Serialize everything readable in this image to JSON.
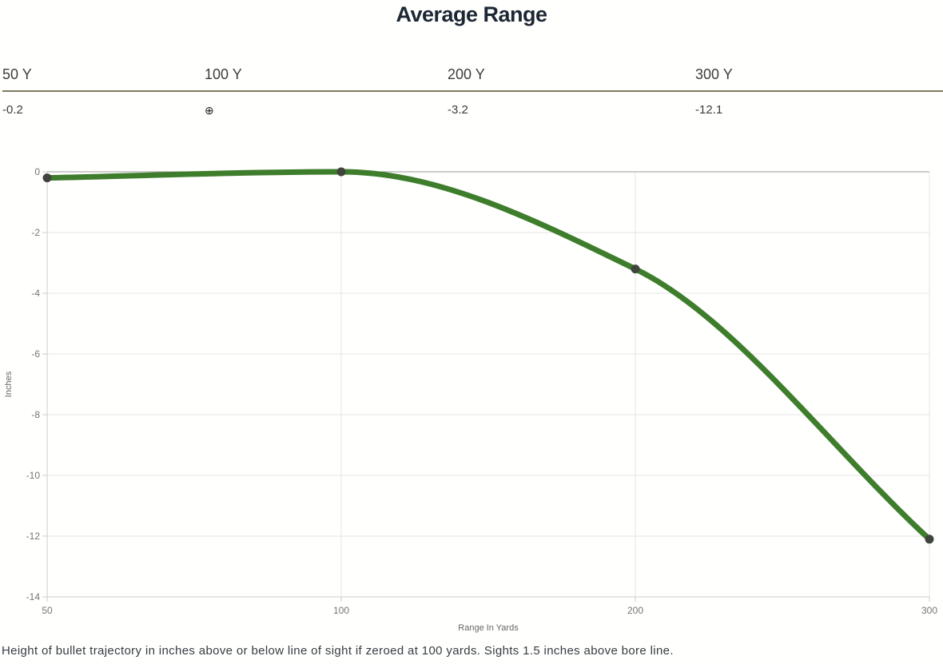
{
  "page": {
    "title": "Average Range",
    "caption": "Height of bullet trajectory in inches above or below line of sight if zeroed at 100 yards. Sights 1.5 inches above bore line."
  },
  "range_table": {
    "columns": [
      {
        "label": "50 Y",
        "value": "-0.2"
      },
      {
        "label": "100 Y",
        "value": "⊕"
      },
      {
        "label": "200 Y",
        "value": "-3.2"
      },
      {
        "label": "300 Y",
        "value": "-12.1"
      }
    ],
    "zero_symbol": "⊕",
    "rule_color": "#7f7a5f"
  },
  "chart_data": {
    "type": "line",
    "title": "Average Range",
    "x": [
      50,
      100,
      200,
      300
    ],
    "x_tick_labels": [
      "50",
      "100",
      "200",
      "300"
    ],
    "values": [
      -0.2,
      0,
      -3.2,
      -12.1
    ],
    "series": [
      {
        "name": "Average Range",
        "values": [
          -0.2,
          0,
          -3.2,
          -12.1
        ]
      }
    ],
    "xlabel": "Range In Yards",
    "ylabel": "Inches",
    "ylim": [
      -14,
      0
    ],
    "y_ticks": [
      0,
      -2,
      -4,
      -6,
      -8,
      -10,
      -12,
      -14
    ],
    "x_spacing": "equal-categories",
    "grid": true,
    "legend": "none",
    "line_color": "#3e7d2c",
    "marker_color": "#3f443c",
    "gridline_color": "#e6e6e6",
    "zero_line_color": "#999999",
    "axis_color": "#cccccc",
    "tick_label_color": "#757575",
    "axis_title_color": "#666666"
  }
}
